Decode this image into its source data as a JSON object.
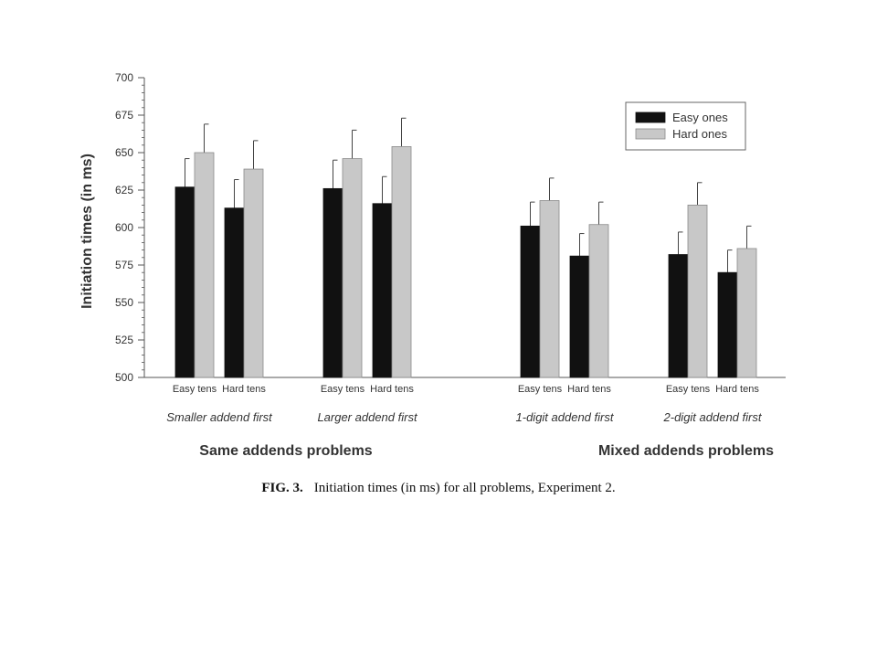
{
  "chart_data": {
    "type": "bar",
    "ylabel": "Initiation times (in ms)",
    "ylim": [
      500,
      700
    ],
    "yticks": [
      500,
      525,
      550,
      575,
      600,
      625,
      650,
      675,
      700
    ],
    "legend": {
      "placement": "top-right",
      "entries": [
        "Easy ones",
        "Hard ones"
      ]
    },
    "series": [
      {
        "name": "Easy ones",
        "color": "#111111"
      },
      {
        "name": "Hard ones",
        "color": "#c8c8c8"
      }
    ],
    "panels": [
      {
        "label": "Same addends problems",
        "conditions": [
          {
            "label": "Smaller addend first",
            "categories": [
              "Easy tens",
              "Hard tens"
            ],
            "easy_ones": [
              627,
              613
            ],
            "easy_ones_error": [
              19,
              19
            ],
            "hard_ones": [
              650,
              639
            ],
            "hard_ones_error": [
              19,
              19
            ]
          },
          {
            "label": "Larger addend first",
            "categories": [
              "Easy tens",
              "Hard tens"
            ],
            "easy_ones": [
              626,
              616
            ],
            "easy_ones_error": [
              19,
              18
            ],
            "hard_ones": [
              646,
              654
            ],
            "hard_ones_error": [
              19,
              19
            ]
          }
        ]
      },
      {
        "label": "Mixed addends problems",
        "conditions": [
          {
            "label": "1-digit addend first",
            "categories": [
              "Easy tens",
              "Hard tens"
            ],
            "easy_ones": [
              601,
              581
            ],
            "easy_ones_error": [
              16,
              15
            ],
            "hard_ones": [
              618,
              602
            ],
            "hard_ones_error": [
              15,
              15
            ]
          },
          {
            "label": "2-digit addend first",
            "categories": [
              "Easy tens",
              "Hard tens"
            ],
            "easy_ones": [
              582,
              570
            ],
            "easy_ones_error": [
              15,
              15
            ],
            "hard_ones": [
              615,
              586
            ],
            "hard_ones_error": [
              15,
              15
            ]
          }
        ]
      }
    ]
  },
  "caption": {
    "figure_label": "FIG. 3.",
    "text": "Initiation times (in ms) for all problems, Experiment 2."
  }
}
